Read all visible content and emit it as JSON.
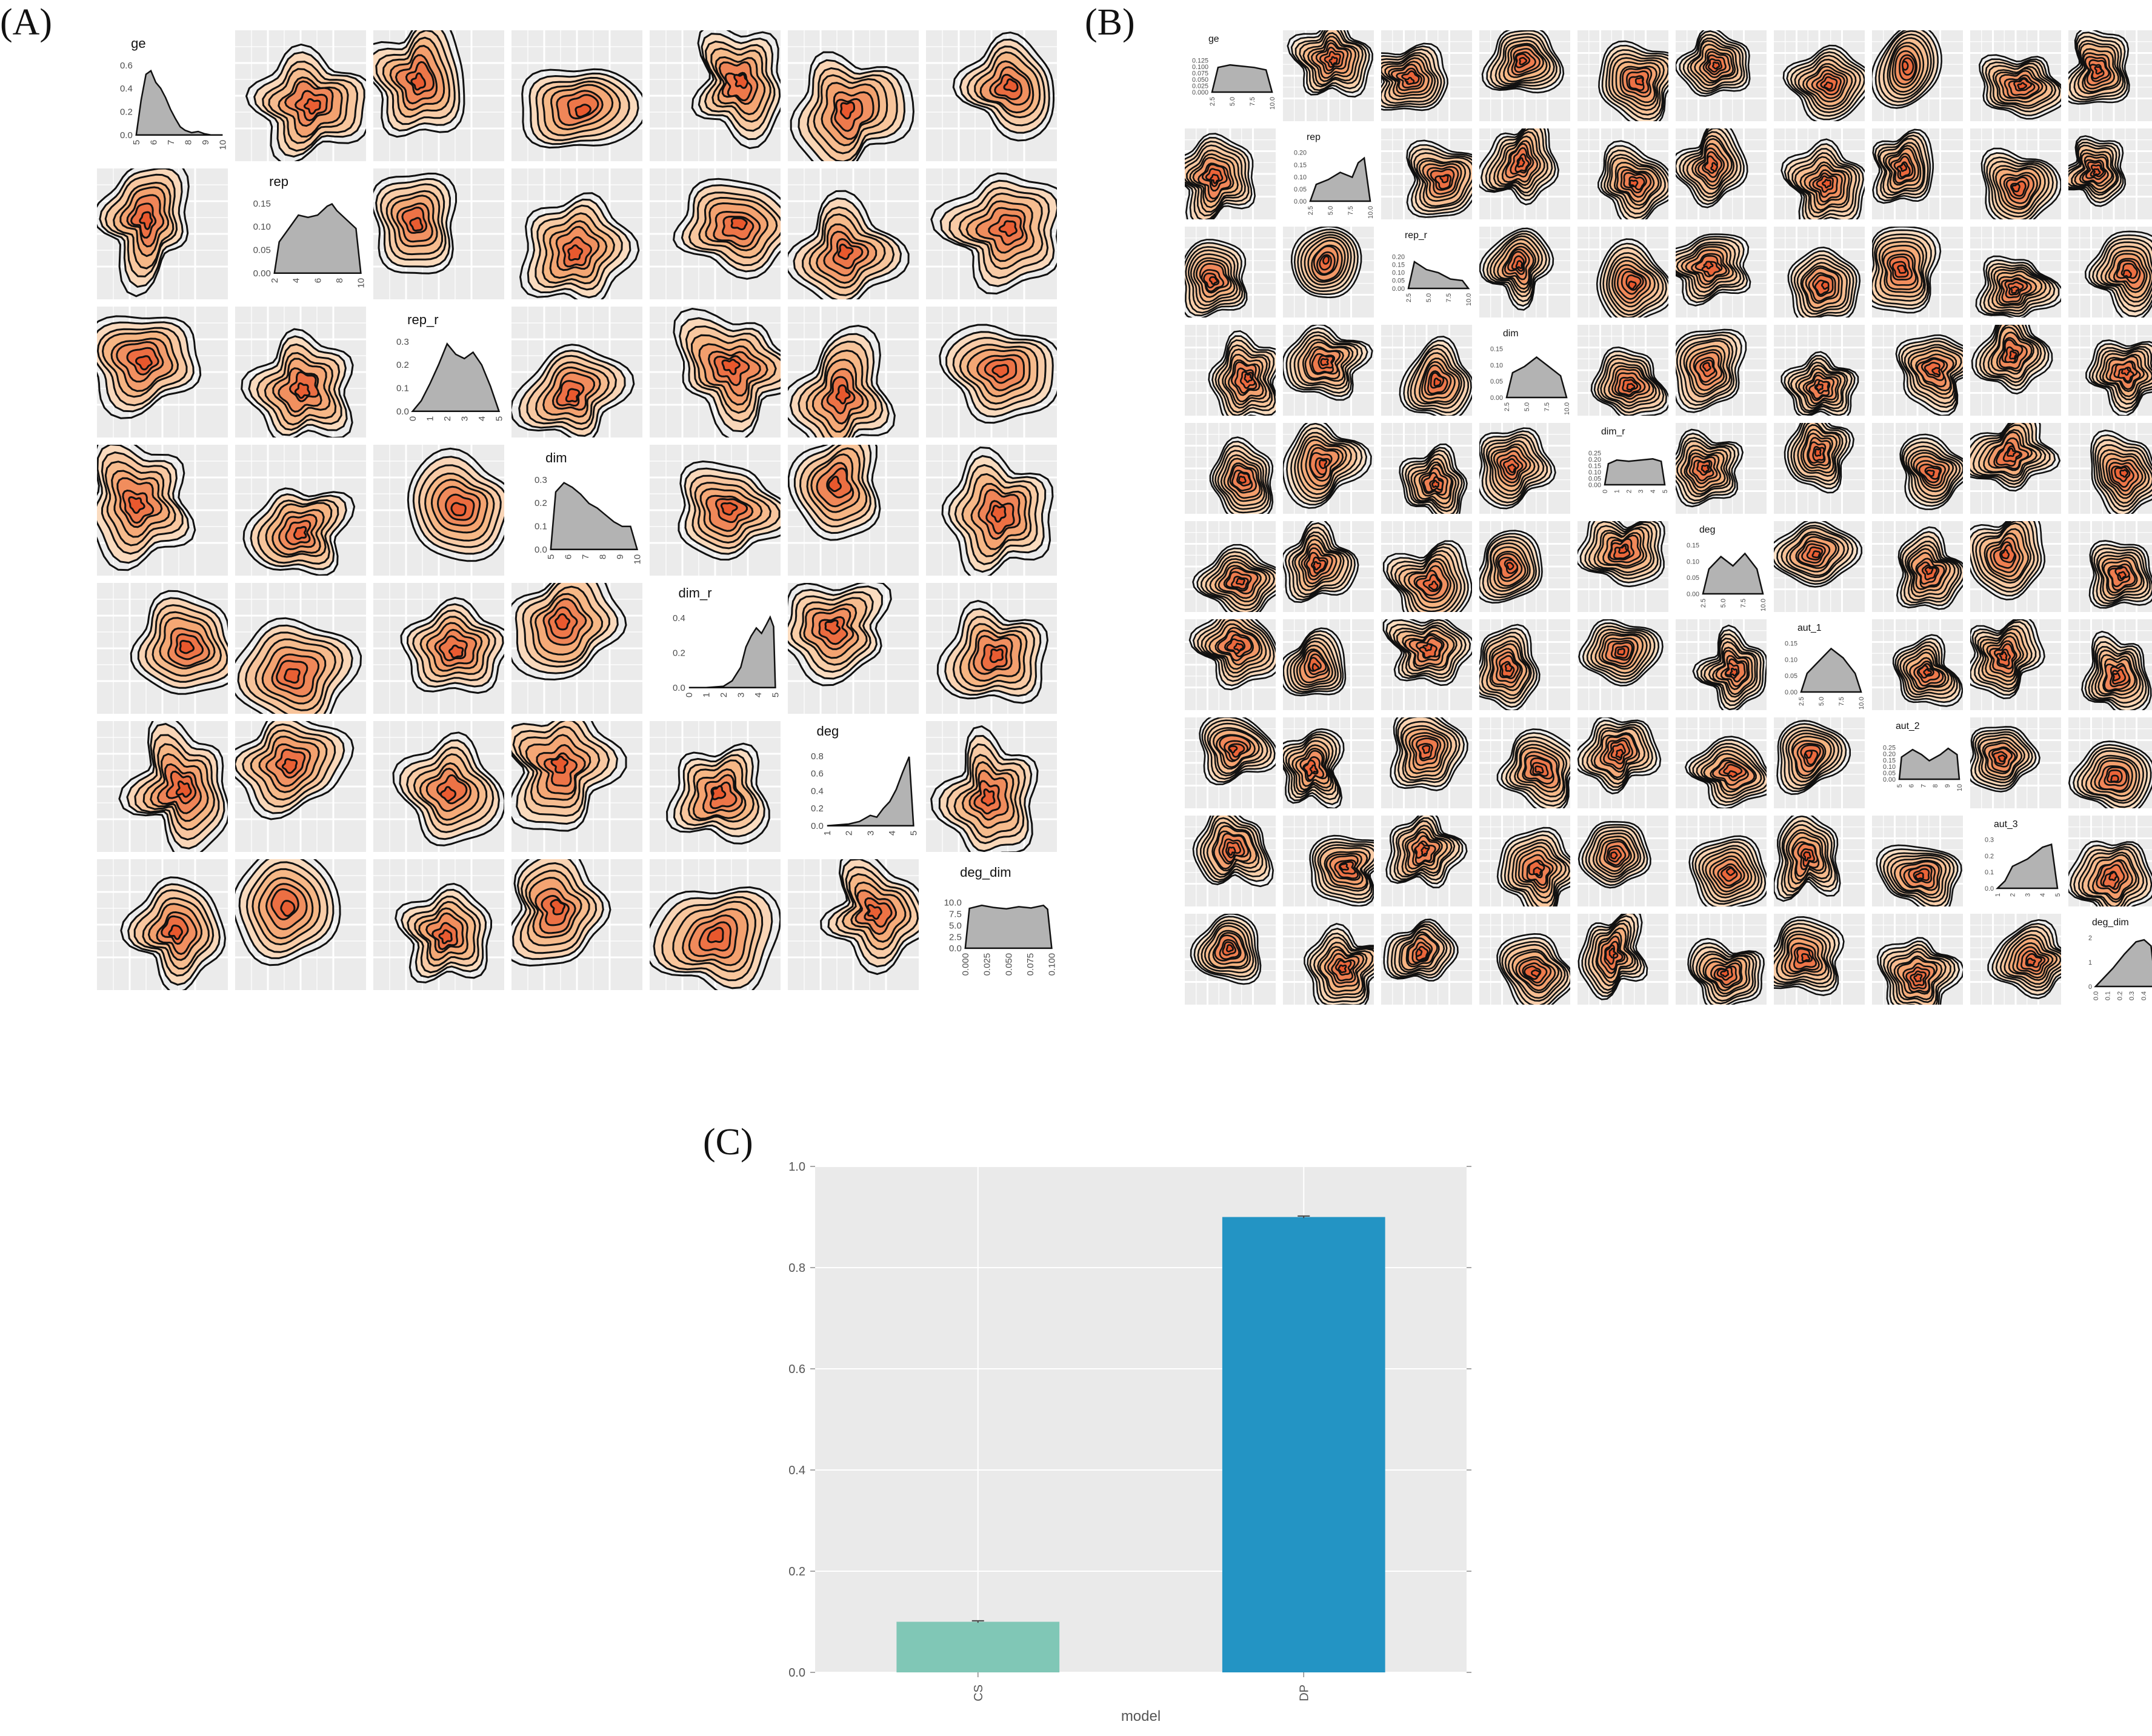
{
  "panels": {
    "a": {
      "label": "(A)"
    },
    "b": {
      "label": "(B)"
    },
    "c": {
      "label": "(C)"
    }
  },
  "colors": {
    "panel_bg": "#ebebeb",
    "grid": "#ffffff",
    "contour": "#111111",
    "density_fill": "#b3b3b3",
    "heat_low": "#fdebd6",
    "heat_mid": "#f5b27f",
    "heat_high": "#e8562c",
    "bar_cs": "#80c7b6",
    "bar_dp": "#2394c4"
  },
  "chart_data": [
    {
      "type": "pairs-density",
      "panel": "A",
      "variables": [
        "ge",
        "rep",
        "rep_r",
        "dim",
        "dim_r",
        "deg",
        "deg_dim"
      ],
      "diagonal_density": [
        {
          "var": "ge",
          "x_ticks": [
            "5",
            "6",
            "7",
            "8",
            "9",
            "10"
          ],
          "y_ticks": [
            "0.0",
            "0.2",
            "0.4",
            "0.6"
          ],
          "xlim": [
            5,
            10.3
          ],
          "ylim": [
            0,
            0.65
          ],
          "x": [
            5.0,
            5.3,
            5.6,
            5.9,
            6.2,
            6.5,
            6.8,
            7.1,
            7.4,
            7.7,
            8.0,
            8.4,
            8.8,
            9.2,
            9.6,
            10.0,
            10.3
          ],
          "y": [
            0.0,
            0.3,
            0.52,
            0.55,
            0.45,
            0.4,
            0.32,
            0.22,
            0.14,
            0.07,
            0.04,
            0.02,
            0.03,
            0.01,
            0.0,
            0.0,
            0.0
          ],
          "style": "left"
        },
        {
          "var": "rep",
          "x_ticks": [
            "2",
            "4",
            "6",
            "8",
            "10"
          ],
          "y_ticks": [
            "0.00",
            "0.05",
            "0.10",
            "0.15"
          ],
          "xlim": [
            1.5,
            10.5
          ],
          "ylim": [
            0,
            0.17
          ],
          "x": [
            1.5,
            2,
            3,
            4,
            5,
            6,
            7,
            7.5,
            8,
            9,
            10,
            10.5
          ],
          "y": [
            0.0,
            0.07,
            0.1,
            0.13,
            0.125,
            0.13,
            0.15,
            0.155,
            0.14,
            0.12,
            0.1,
            0.0
          ],
          "style": "left"
        },
        {
          "var": "rep_r",
          "x_ticks": [
            "0",
            "1",
            "2",
            "3",
            "4",
            "5"
          ],
          "y_ticks": [
            "0.0",
            "0.1",
            "0.2",
            "0.3"
          ],
          "xlim": [
            0,
            5
          ],
          "ylim": [
            0,
            0.36
          ],
          "x": [
            0,
            0.5,
            1,
            1.5,
            2,
            2.5,
            3,
            3.5,
            4,
            4.5,
            5
          ],
          "y": [
            0.0,
            0.05,
            0.13,
            0.22,
            0.32,
            0.27,
            0.25,
            0.28,
            0.22,
            0.12,
            0.0
          ],
          "style": "left"
        },
        {
          "var": "dim",
          "x_ticks": [
            "5",
            "6",
            "7",
            "8",
            "9",
            "10"
          ],
          "y_ticks": [
            "0.0",
            "0.1",
            "0.2",
            "0.3"
          ],
          "xlim": [
            5,
            10.2
          ],
          "ylim": [
            0,
            0.33
          ],
          "x": [
            5,
            5.3,
            5.8,
            6.3,
            6.8,
            7.3,
            7.8,
            8.3,
            8.8,
            9.3,
            9.8,
            10.2
          ],
          "y": [
            0.0,
            0.25,
            0.29,
            0.27,
            0.24,
            0.2,
            0.18,
            0.15,
            0.12,
            0.1,
            0.1,
            0.0
          ],
          "style": "left"
        },
        {
          "var": "dim_r",
          "x_ticks": [
            "0",
            "1",
            "2",
            "3",
            "4",
            "5"
          ],
          "y_ticks": [
            "0.0",
            "0.2",
            "0.4"
          ],
          "xlim": [
            0,
            5
          ],
          "ylim": [
            0,
            0.56
          ],
          "x": [
            0,
            1,
            2,
            2.5,
            3,
            3.3,
            3.6,
            3.9,
            4.2,
            4.5,
            4.7,
            4.9,
            5.0
          ],
          "y": [
            0.0,
            0.0,
            0.01,
            0.05,
            0.15,
            0.3,
            0.38,
            0.44,
            0.4,
            0.47,
            0.52,
            0.45,
            0.0
          ],
          "style": "right"
        },
        {
          "var": "deg",
          "x_ticks": [
            "1",
            "2",
            "3",
            "4",
            "5"
          ],
          "y_ticks": [
            "0.0",
            "0.2",
            "0.4",
            "0.6",
            "0.8"
          ],
          "xlim": [
            1,
            5
          ],
          "ylim": [
            0,
            0.88
          ],
          "x": [
            1,
            2,
            2.5,
            3,
            3.3,
            3.6,
            3.9,
            4.2,
            4.5,
            4.8,
            5.0
          ],
          "y": [
            0.0,
            0.02,
            0.05,
            0.12,
            0.1,
            0.2,
            0.28,
            0.42,
            0.62,
            0.8,
            0.0
          ],
          "style": "right"
        },
        {
          "var": "deg_dim",
          "x_ticks": [
            "0.000",
            "0.025",
            "0.050",
            "0.075",
            "0.100"
          ],
          "y_ticks": [
            "0.0",
            "2.5",
            "5.0",
            "7.5",
            "10.0"
          ],
          "xlim": [
            0,
            0.105
          ],
          "ylim": [
            0,
            11.5
          ],
          "x": [
            0,
            0.005,
            0.02,
            0.035,
            0.05,
            0.065,
            0.08,
            0.095,
            0.1,
            0.105
          ],
          "y": [
            0.0,
            9.2,
            9.9,
            9.4,
            9.1,
            9.6,
            9.3,
            9.9,
            9.0,
            0.0
          ],
          "style": "box"
        }
      ]
    },
    {
      "type": "pairs-density",
      "panel": "B",
      "variables": [
        "ge",
        "rep",
        "rep_r",
        "dim",
        "dim_r",
        "deg",
        "aut_1",
        "aut_2",
        "aut_3",
        "deg_dim"
      ],
      "diagonal_density": [
        {
          "var": "ge",
          "x_ticks": [
            "2.5",
            "5.0",
            "7.5",
            "10.0"
          ],
          "y_ticks": [
            "0.000",
            "0.025",
            "0.050",
            "0.075",
            "0.100",
            "0.125"
          ],
          "xlim": [
            1,
            11
          ],
          "ylim": [
            0,
            0.14
          ],
          "x": [
            1,
            2,
            4,
            6,
            8,
            10,
            11
          ],
          "y": [
            0.0,
            0.1,
            0.11,
            0.105,
            0.1,
            0.09,
            0.0
          ],
          "style": "box"
        },
        {
          "var": "rep",
          "x_ticks": [
            "2.5",
            "5.0",
            "7.5",
            "10.0"
          ],
          "y_ticks": [
            "0.00",
            "0.05",
            "0.10",
            "0.15",
            "0.20"
          ],
          "xlim": [
            1,
            11
          ],
          "ylim": [
            0,
            0.22
          ],
          "x": [
            1,
            2,
            4,
            6,
            8,
            9,
            10,
            11
          ],
          "y": [
            0.0,
            0.07,
            0.09,
            0.12,
            0.1,
            0.16,
            0.18,
            0.0
          ],
          "style": "left"
        },
        {
          "var": "rep_r",
          "x_ticks": [
            "2.5",
            "5.0",
            "7.5",
            "10.0"
          ],
          "y_ticks": [
            "0.00",
            "0.05",
            "0.10",
            "0.15",
            "0.20"
          ],
          "xlim": [
            1,
            11
          ],
          "ylim": [
            0,
            0.22
          ],
          "x": [
            1,
            2,
            4,
            6,
            8,
            10,
            11
          ],
          "y": [
            0.0,
            0.17,
            0.12,
            0.1,
            0.06,
            0.05,
            0.0
          ],
          "style": "box"
        },
        {
          "var": "dim",
          "x_ticks": [
            "2.5",
            "5.0",
            "7.5",
            "10.0"
          ],
          "y_ticks": [
            "0.00",
            "0.05",
            "0.10",
            "0.15"
          ],
          "xlim": [
            1,
            11
          ],
          "ylim": [
            0,
            0.17
          ],
          "x": [
            1,
            2,
            4,
            6,
            8,
            10,
            11
          ],
          "y": [
            0.0,
            0.08,
            0.1,
            0.13,
            0.1,
            0.07,
            0.0
          ],
          "style": "left"
        },
        {
          "var": "dim_r",
          "x_ticks": [
            "0",
            "1",
            "2",
            "3",
            "4",
            "5"
          ],
          "y_ticks": [
            "0.00",
            "0.05",
            "0.10",
            "0.15",
            "0.20",
            "0.25"
          ],
          "xlim": [
            0,
            5
          ],
          "ylim": [
            0,
            0.28
          ],
          "x": [
            0,
            0.3,
            1,
            2,
            3,
            4,
            4.7,
            5
          ],
          "y": [
            0.0,
            0.17,
            0.2,
            0.19,
            0.2,
            0.21,
            0.19,
            0.0
          ],
          "style": "box"
        },
        {
          "var": "deg",
          "x_ticks": [
            "2.5",
            "5.0",
            "7.5",
            "10.0"
          ],
          "y_ticks": [
            "0.00",
            "0.05",
            "0.10",
            "0.15"
          ],
          "xlim": [
            1,
            11
          ],
          "ylim": [
            0,
            0.17
          ],
          "x": [
            1,
            2,
            4,
            6,
            8,
            10,
            11
          ],
          "y": [
            0.0,
            0.08,
            0.12,
            0.09,
            0.13,
            0.08,
            0.0
          ],
          "style": "left"
        },
        {
          "var": "aut_1",
          "x_ticks": [
            "2.5",
            "5.0",
            "7.5",
            "10.0"
          ],
          "y_ticks": [
            "0.00",
            "0.05",
            "0.10",
            "0.15"
          ],
          "xlim": [
            1,
            11
          ],
          "ylim": [
            0,
            0.17
          ],
          "x": [
            1,
            2,
            4,
            6,
            8,
            10,
            11
          ],
          "y": [
            0.0,
            0.06,
            0.1,
            0.14,
            0.11,
            0.06,
            0.0
          ],
          "style": "left"
        },
        {
          "var": "aut_2",
          "x_ticks": [
            "5",
            "6",
            "7",
            "8",
            "9",
            "10"
          ],
          "y_ticks": [
            "0.00",
            "0.05",
            "0.10",
            "0.15",
            "0.20",
            "0.25"
          ],
          "xlim": [
            4.8,
            10.2
          ],
          "ylim": [
            0,
            0.28
          ],
          "x": [
            4.8,
            5,
            6,
            6.8,
            7.5,
            8.5,
            9.2,
            10,
            10.2
          ],
          "y": [
            0.0,
            0.18,
            0.24,
            0.2,
            0.15,
            0.2,
            0.25,
            0.2,
            0.0
          ],
          "style": "box"
        },
        {
          "var": "aut_3",
          "x_ticks": [
            "1",
            "2",
            "3",
            "4",
            "5"
          ],
          "y_ticks": [
            "0.0",
            "0.1",
            "0.2",
            "0.3"
          ],
          "xlim": [
            1,
            5
          ],
          "ylim": [
            0,
            0.36
          ],
          "x": [
            1,
            1.5,
            2,
            3,
            4,
            4.6,
            5
          ],
          "y": [
            0.0,
            0.05,
            0.15,
            0.2,
            0.28,
            0.3,
            0.0
          ],
          "style": "left"
        },
        {
          "var": "deg_dim",
          "x_ticks": [
            "0.0",
            "0.1",
            "0.2",
            "0.3",
            "0.4",
            "0.5"
          ],
          "y_ticks": [
            "0",
            "1",
            "2"
          ],
          "xlim": [
            0,
            0.52
          ],
          "ylim": [
            0,
            2.6
          ],
          "x": [
            0,
            0.05,
            0.15,
            0.25,
            0.35,
            0.42,
            0.48,
            0.52
          ],
          "y": [
            0.0,
            0.3,
            0.9,
            1.6,
            2.2,
            2.3,
            2.0,
            0.0
          ],
          "style": "left"
        }
      ]
    },
    {
      "type": "bar",
      "panel": "C",
      "categories": [
        "CS",
        "DP"
      ],
      "values": [
        0.1,
        0.9
      ],
      "error": [
        0.002,
        0.002
      ],
      "xlabel": "model",
      "ylabel": "",
      "ylim": [
        0,
        1.0
      ],
      "y_ticks": [
        "0.0",
        "0.2",
        "0.4",
        "0.6",
        "0.8",
        "1.0"
      ],
      "title": ""
    }
  ]
}
